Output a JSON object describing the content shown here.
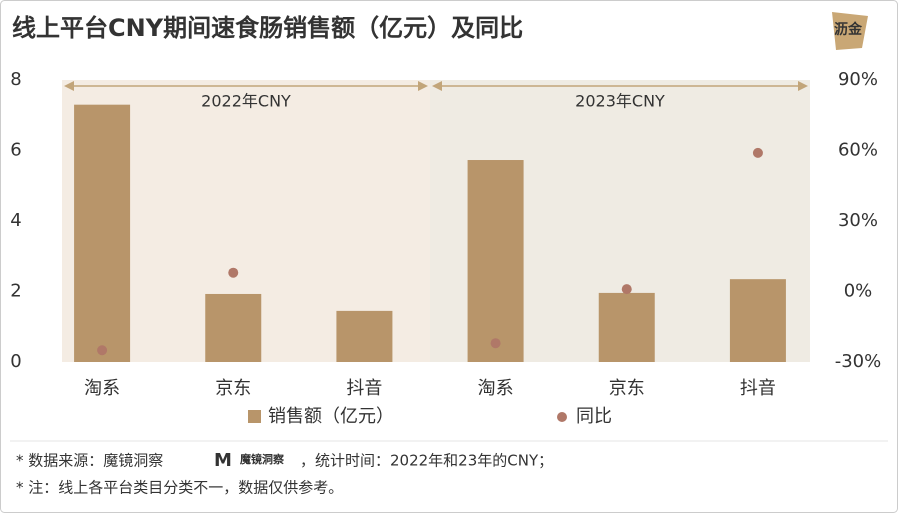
{
  "chart_data": {
    "type": "bar",
    "title": "线上平台CNY期间速食肠销售额（亿元）及同比",
    "watermark": "沥金",
    "groups": [
      "2022年CNY",
      "2023年CNY"
    ],
    "categories": [
      "淘系",
      "京东",
      "抖音",
      "淘系",
      "京东",
      "抖音"
    ],
    "series": [
      {
        "name": "销售额（亿元）",
        "color": "#b8956a",
        "values": [
          7.3,
          1.93,
          1.45,
          5.73,
          1.96,
          2.35
        ]
      },
      {
        "name": "同比",
        "color": "#b07868",
        "axis": "y2",
        "values": [
          -25,
          8,
          null,
          -22,
          1,
          59
        ]
      }
    ],
    "ylim": [
      0,
      8
    ],
    "yticks": [
      0,
      2,
      4,
      6,
      8
    ],
    "y2lim": [
      -30,
      90
    ],
    "y2ticks": [
      {
        "value": -30,
        "label": "-30%"
      },
      {
        "value": 0,
        "label": "0%"
      },
      {
        "value": 30,
        "label": "30%"
      },
      {
        "value": 60,
        "label": "60%"
      },
      {
        "value": 90,
        "label": "90%"
      }
    ],
    "footnotes": {
      "source_prefix": "*  数据来源：魔镜洞察",
      "source_logo": "魔镜洞察",
      "source_suffix": "，统计时间：2022年和23年的CNY；",
      "note": "*  注：线上各平台类目分类不一，数据仅供参考。"
    }
  }
}
